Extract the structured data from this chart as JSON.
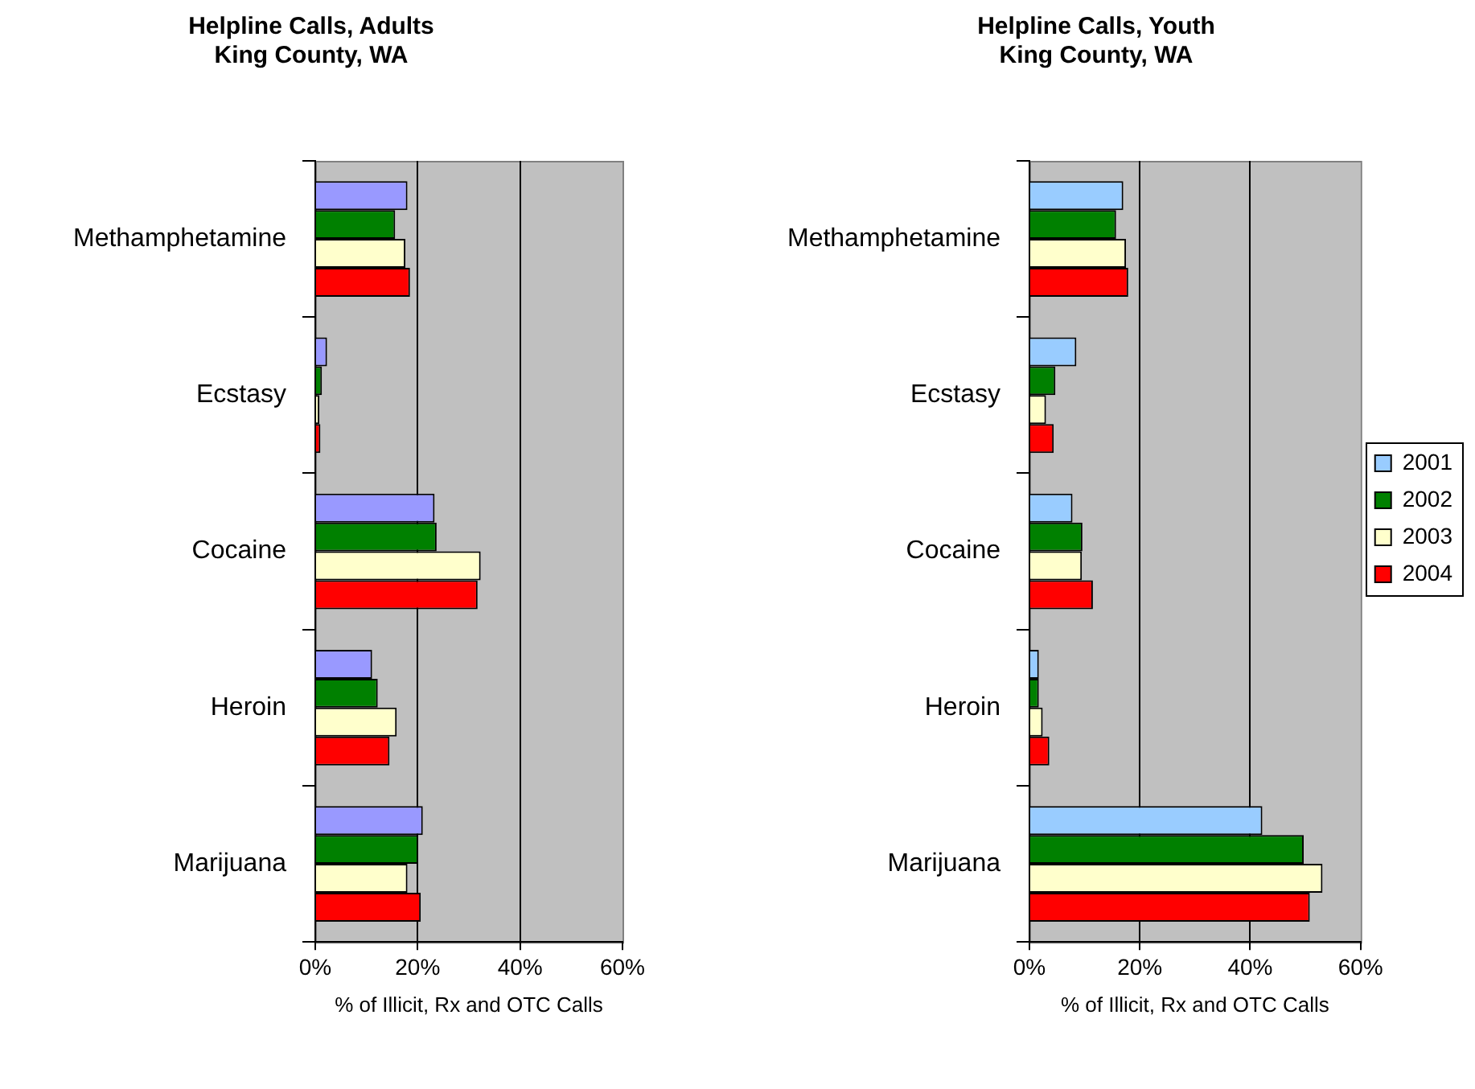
{
  "chart_data": [
    {
      "type": "bar",
      "orientation": "horizontal",
      "title": "Helpline Calls, Adults\nKing County, WA",
      "xlabel": "% of Illicit, Rx and OTC Calls",
      "categories": [
        "Methamphetamine",
        "Ecstasy",
        "Cocaine",
        "Heroin",
        "Marijuana"
      ],
      "series": [
        {
          "color": "#9999ff",
          "values": [
            18.0,
            2.3,
            23.3,
            11.1,
            21.0
          ]
        },
        {
          "color": "#008000",
          "values": [
            15.6,
            1.3,
            23.7,
            12.2,
            20.1
          ]
        },
        {
          "color": "#ffffcc",
          "values": [
            17.6,
            0.8,
            32.3,
            15.9,
            18.0
          ]
        },
        {
          "color": "#ff0000",
          "values": [
            18.5,
            1.0,
            31.7,
            14.5,
            20.6
          ]
        }
      ],
      "xlim": [
        0,
        60
      ],
      "xticks": [
        {
          "value": 0,
          "label": "0%"
        },
        {
          "value": 20,
          "label": "20%"
        },
        {
          "value": 40,
          "label": "40%"
        },
        {
          "value": 60,
          "label": "60%"
        }
      ],
      "grid": "x",
      "legend": false
    },
    {
      "type": "bar",
      "orientation": "horizontal",
      "title": "Helpline Calls, Youth\nKing County, WA",
      "xlabel": "% of Illicit, Rx and OTC Calls",
      "categories": [
        "Methamphetamine",
        "Ecstasy",
        "Cocaine",
        "Heroin",
        "Marijuana"
      ],
      "series": [
        {
          "name": "2001",
          "color": "#99ccff",
          "values": [
            17.0,
            8.5,
            7.8,
            1.7,
            42.2
          ]
        },
        {
          "name": "2002",
          "color": "#008000",
          "values": [
            15.7,
            4.7,
            9.6,
            1.7,
            49.7
          ]
        },
        {
          "name": "2003",
          "color": "#ffffcc",
          "values": [
            17.5,
            3.0,
            9.5,
            2.4,
            53.1
          ]
        },
        {
          "name": "2004",
          "color": "#ff0000",
          "values": [
            17.9,
            4.4,
            11.5,
            3.6,
            50.8
          ]
        }
      ],
      "xlim": [
        0,
        60
      ],
      "xticks": [
        {
          "value": 0,
          "label": "0%"
        },
        {
          "value": 20,
          "label": "20%"
        },
        {
          "value": 40,
          "label": "40%"
        },
        {
          "value": 60,
          "label": "60%"
        }
      ],
      "grid": "x",
      "legend": "right"
    }
  ]
}
